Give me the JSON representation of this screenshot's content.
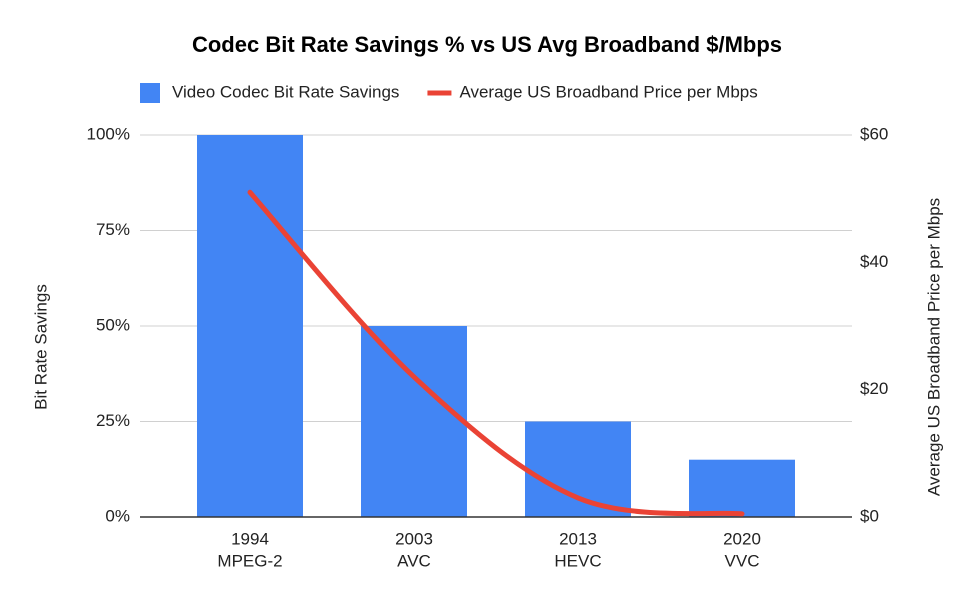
{
  "chart_data": {
    "type": "bar_line",
    "title": "Codec Bit Rate Savings % vs US Avg Broadband $/Mbps",
    "categories": [
      [
        "1994",
        "MPEG-2"
      ],
      [
        "2003",
        "AVC"
      ],
      [
        "2013",
        "HEVC"
      ],
      [
        "2020",
        "VVC"
      ]
    ],
    "series": [
      {
        "name": "Video Codec Bit Rate Savings",
        "color": "#4285f4",
        "type": "bar",
        "values": [
          100,
          50,
          25,
          15
        ]
      },
      {
        "name": "Average US Broadband Price per Mbps",
        "color": "#ea4335",
        "type": "line",
        "axis": "y2",
        "smooth": true,
        "values": [
          51,
          22,
          3,
          0.5
        ]
      }
    ],
    "ylabel": "Bit Rate Savings",
    "y2label": "Average US Broadband Price per Mbps",
    "ylim": [
      0,
      100
    ],
    "yticks": [
      {
        "value": 0,
        "label": "0%"
      },
      {
        "value": 25,
        "label": "25%"
      },
      {
        "value": 50,
        "label": "50%"
      },
      {
        "value": 75,
        "label": "75%"
      },
      {
        "value": 100,
        "label": "100%"
      }
    ],
    "y2lim": [
      0,
      60
    ],
    "y2ticks": [
      {
        "value": 0,
        "label": "$0"
      },
      {
        "value": 20,
        "label": "$20"
      },
      {
        "value": 40,
        "label": "$40"
      },
      {
        "value": 60,
        "label": "$60"
      }
    ],
    "grid": true,
    "legend": "top"
  }
}
